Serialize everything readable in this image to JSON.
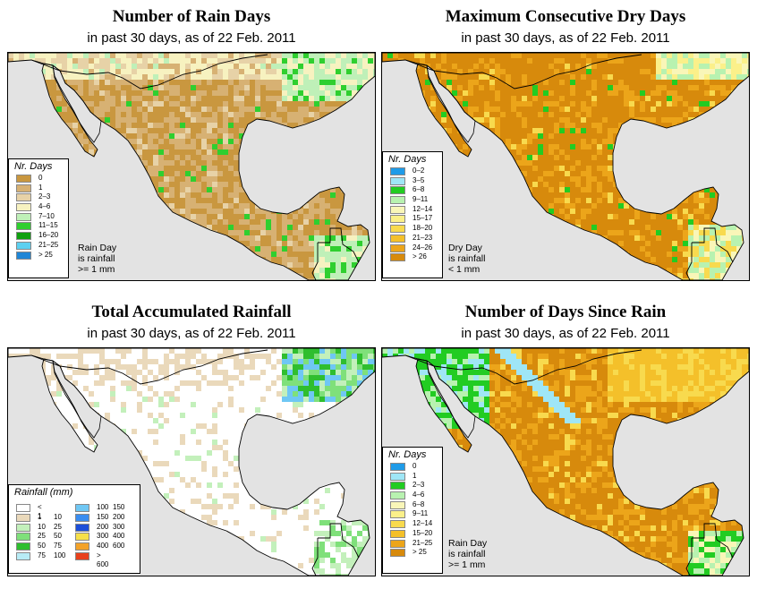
{
  "panels": [
    {
      "title": "Number of Rain Days",
      "subtitle": "in past 30 days, as of  22 Feb. 2011",
      "legend_title": "Nr. Days",
      "legend": [
        {
          "label": "0",
          "color": "#c9973f"
        },
        {
          "label": "1",
          "color": "#d7b173"
        },
        {
          "label": "2–3",
          "color": "#e7d2a7"
        },
        {
          "label": "4–6",
          "color": "#f7f2c0"
        },
        {
          "label": "7–10",
          "color": "#bff0b8"
        },
        {
          "label": "11–15",
          "color": "#2fcf2f"
        },
        {
          "label": "16–20",
          "color": "#0fa00f"
        },
        {
          "label": "21–25",
          "color": "#5cd0f0"
        },
        {
          "label": "> 25",
          "color": "#1f86d6"
        }
      ],
      "note": [
        "Rain Day",
        "is rainfall",
        ">= 1 mm"
      ]
    },
    {
      "title": "Maximum Consecutive Dry Days",
      "subtitle": "in past 30 days, as of  22 Feb. 2011",
      "legend_title": "Nr. Days",
      "legend": [
        {
          "label": "0–2",
          "color": "#1f9be8"
        },
        {
          "label": "3–5",
          "color": "#9fe6f6"
        },
        {
          "label": "6–8",
          "color": "#22cc22"
        },
        {
          "label": "9–11",
          "color": "#b8f2b0"
        },
        {
          "label": "12–14",
          "color": "#f9f6b8"
        },
        {
          "label": "15–17",
          "color": "#fbf08a"
        },
        {
          "label": "18–20",
          "color": "#f8da4e"
        },
        {
          "label": "21–23",
          "color": "#f4c02a"
        },
        {
          "label": "24–26",
          "color": "#eca51a"
        },
        {
          "label": "> 26",
          "color": "#d78a0c"
        }
      ],
      "note": [
        "Dry Day",
        "is rainfall",
        "< 1 mm"
      ]
    },
    {
      "title": "Total Accumulated Rainfall",
      "subtitle": "in past 30 days, as of  22 Feb. 2011",
      "legend_title": "Rainfall (mm)",
      "legend_left": [
        {
          "a": "< 1",
          "b": "",
          "color": "#ffffff"
        },
        {
          "a": "1",
          "b": "10",
          "color": "#ead9bb"
        },
        {
          "a": "10",
          "b": "25",
          "color": "#c3f0bb"
        },
        {
          "a": "25",
          "b": "50",
          "color": "#7fe07a"
        },
        {
          "a": "50",
          "b": "75",
          "color": "#2fbe2f"
        },
        {
          "a": "75",
          "b": "100",
          "color": "#b8ecf6"
        }
      ],
      "legend_right": [
        {
          "a": "100",
          "b": "150",
          "color": "#6fc7f4"
        },
        {
          "a": "150",
          "b": "200",
          "color": "#3a8df0"
        },
        {
          "a": "200",
          "b": "300",
          "color": "#1d4fd8"
        },
        {
          "a": "300",
          "b": "400",
          "color": "#f6e04a"
        },
        {
          "a": "400",
          "b": "600",
          "color": "#f3a22a"
        },
        {
          "a": "> 600",
          "b": "",
          "color": "#e8401c"
        }
      ]
    },
    {
      "title": "Number of Days Since Rain",
      "subtitle": "in past 30 days, as of  22 Feb. 2011",
      "legend_title": "Nr. Days",
      "legend": [
        {
          "label": "0",
          "color": "#1f9be8"
        },
        {
          "label": "1",
          "color": "#9fe6f6"
        },
        {
          "label": "2–3",
          "color": "#22cc22"
        },
        {
          "label": "4–6",
          "color": "#b8f2b0"
        },
        {
          "label": "6–8",
          "color": "#f9f6b8"
        },
        {
          "label": "9–11",
          "color": "#fbf08a"
        },
        {
          "label": "12–14",
          "color": "#f8da4e"
        },
        {
          "label": "15–20",
          "color": "#f4c02a"
        },
        {
          "label": "21–25",
          "color": "#eca51a"
        },
        {
          "label": "> 25",
          "color": "#d78a0c"
        }
      ],
      "note": [
        "Rain Day",
        "is rainfall",
        ">= 1 mm"
      ]
    }
  ],
  "map_colors": {
    "ocean": "#e3e3e3",
    "coast": "#000000"
  }
}
